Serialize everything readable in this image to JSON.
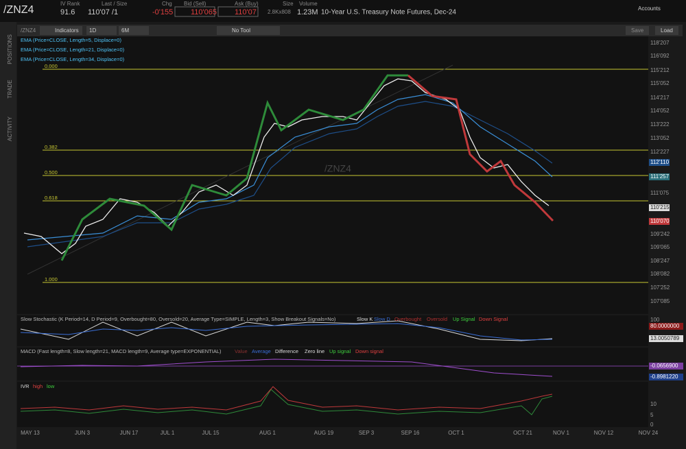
{
  "header": {
    "symbol": "/ZNZ4",
    "iv_rank_label": "IV Rank",
    "iv_rank": "91.6",
    "last_label": "Last / Size",
    "last": "110'07 /1",
    "chg_label": "Chg",
    "chg": "-0'155",
    "bid_label": "Bid (Sell)",
    "bid": "110'065",
    "ask_label": "Ask (Buy)",
    "ask": "110'07",
    "size_label": "Size",
    "size": "2.8Kx808",
    "volume_label": "Volume",
    "volume": "1.23M",
    "description": "10-Year U.S. Treasury Note Futures, Dec-24",
    "accounts": "Accounts"
  },
  "sidebar": {
    "tabs": [
      "POSITIONS",
      "TRADE",
      "ACTIVITY"
    ]
  },
  "toolbar": {
    "symbol": "/ZNZ4",
    "indicators": "Indicators",
    "aggregation": "1D",
    "period": "6M",
    "tool": "No Tool",
    "save": "Save",
    "load": "Load"
  },
  "studies": {
    "ema": [
      "EMA (Price=CLOSE, Length=5, Displace=0)",
      "EMA (Price=CLOSE, Length=21, Displace=0)",
      "EMA (Price=CLOSE, Length=34, Displace=0)"
    ],
    "fib": [
      "0.000",
      "0.382",
      "0.500",
      "0.618",
      "1.000"
    ],
    "watermark": "/ZNZ4"
  },
  "price_axis": [
    "118'207",
    "116'092",
    "115'212",
    "115'052",
    "114'217",
    "114'052",
    "113'222",
    "113'052",
    "112'227",
    "112'110",
    "111'257",
    "111'075",
    "110'215",
    "110'070",
    "109'242",
    "109'065",
    "108'247",
    "108'082",
    "107'252",
    "107'085"
  ],
  "stochastic": {
    "title": "Slow Stochastic (K Period=14, D Period=9, Overbought=80, Oversold=20, Average Type=SIMPLE, Length=3, Show Breakout Signals=No)",
    "legend": [
      "Slow K",
      "Slow D",
      "Overbought",
      "Oversold",
      "Up Signal",
      "Down Signal"
    ],
    "axis": [
      "100",
      "80.0000000",
      "13.0050789"
    ]
  },
  "macd": {
    "title": "MACD (Fast length=8, Slow length=21, MACD length=9, Average type=EXPONENTIAL)",
    "legend": [
      "Value",
      "Average",
      "Difference",
      "Zero line",
      "Up signal",
      "Down signal"
    ],
    "axis": [
      "-0.0656900",
      "-0.8981220"
    ]
  },
  "ivr": {
    "title": "IVR",
    "legend": [
      "high",
      "low"
    ],
    "axis": [
      "10",
      "5",
      "0"
    ]
  },
  "dates": [
    "MAY 13",
    "JUN 3",
    "JUN 17",
    "JUL 1",
    "JUL 15",
    "AUG 1",
    "AUG 19",
    "SEP 3",
    "SEP 16",
    "OCT 1",
    "OCT 21",
    "NOV 1",
    "NOV 12",
    "NOV 24"
  ]
}
